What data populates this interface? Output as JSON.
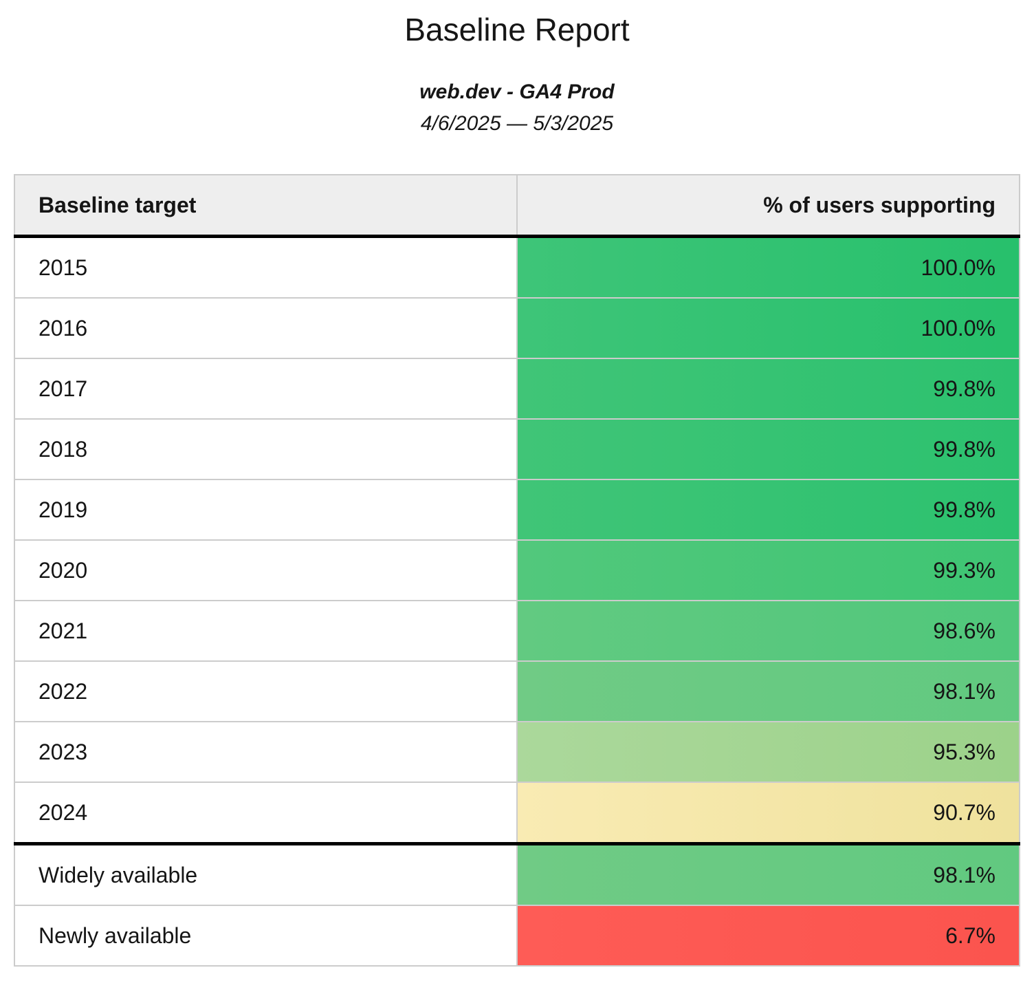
{
  "header": {
    "title": "Baseline Report",
    "subtitle": "web.dev - GA4 Prod",
    "date_range": "4/6/2025 — 5/3/2025"
  },
  "table": {
    "columns": [
      "Baseline target",
      "% of users supporting"
    ],
    "rows": [
      {
        "label": "2015",
        "value": "100.0%",
        "color_from": "#3ec578",
        "color_to": "#27c06c",
        "separator_above": false
      },
      {
        "label": "2016",
        "value": "100.0%",
        "color_from": "#3ec578",
        "color_to": "#27c06c",
        "separator_above": false
      },
      {
        "label": "2017",
        "value": "99.8%",
        "color_from": "#40c577",
        "color_to": "#2cc16f",
        "separator_above": false
      },
      {
        "label": "2018",
        "value": "99.8%",
        "color_from": "#40c577",
        "color_to": "#2cc16f",
        "separator_above": false
      },
      {
        "label": "2019",
        "value": "99.8%",
        "color_from": "#40c577",
        "color_to": "#2cc16f",
        "separator_above": false
      },
      {
        "label": "2020",
        "value": "99.3%",
        "color_from": "#52c87c",
        "color_to": "#3ec573",
        "separator_above": false
      },
      {
        "label": "2021",
        "value": "98.6%",
        "color_from": "#62ca81",
        "color_to": "#50c77b",
        "separator_above": false
      },
      {
        "label": "2022",
        "value": "98.1%",
        "color_from": "#70cb85",
        "color_to": "#61c980",
        "separator_above": false
      },
      {
        "label": "2023",
        "value": "95.3%",
        "color_from": "#abd89b",
        "color_to": "#9cd28a",
        "separator_above": false
      },
      {
        "label": "2024",
        "value": "90.7%",
        "color_from": "#f9ebb3",
        "color_to": "#efe29d",
        "separator_above": false
      },
      {
        "label": "Widely available",
        "value": "98.1%",
        "color_from": "#70cb85",
        "color_to": "#61c980",
        "separator_above": true
      },
      {
        "label": "Newly available",
        "value": "6.7%",
        "color_from": "#fe5c56",
        "color_to": "#fb544e",
        "separator_above": false
      }
    ]
  },
  "chart_data": {
    "type": "table",
    "title": "Baseline Report",
    "categories": [
      "2015",
      "2016",
      "2017",
      "2018",
      "2019",
      "2020",
      "2021",
      "2022",
      "2023",
      "2024",
      "Widely available",
      "Newly available"
    ],
    "values": [
      100.0,
      100.0,
      99.8,
      99.8,
      99.8,
      99.3,
      98.6,
      98.1,
      95.3,
      90.7,
      98.1,
      6.7
    ],
    "value_unit": "%",
    "color_scale": "green-yellow-red by percentage"
  }
}
